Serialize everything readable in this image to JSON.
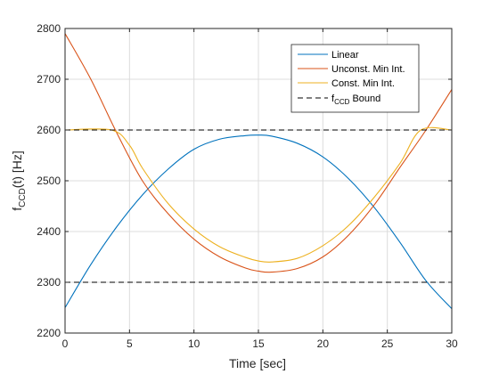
{
  "chart_data": {
    "type": "line",
    "title": "",
    "xlabel": "Time [sec]",
    "ylabel_main": "f",
    "ylabel_sub": "CCD",
    "ylabel_tail": "(t) [Hz]",
    "xlim": [
      0,
      30
    ],
    "ylim": [
      2200,
      2800
    ],
    "xticks": [
      "0",
      "5",
      "10",
      "15",
      "20",
      "25",
      "30"
    ],
    "yticks": [
      "2200",
      "2300",
      "2400",
      "2500",
      "2600",
      "2700",
      "2800"
    ],
    "grid": true,
    "legend_position": "top-right",
    "series": [
      {
        "name": "Linear",
        "color": "#0072BD",
        "style": "solid",
        "x": [
          0,
          2,
          4,
          6,
          8,
          10,
          12,
          14,
          15,
          16,
          18,
          20,
          22,
          24,
          26,
          28,
          30
        ],
        "y": [
          2250,
          2335,
          2409,
          2472,
          2523,
          2562,
          2582,
          2589,
          2590,
          2588,
          2574,
          2547,
          2504,
          2447,
          2378,
          2303,
          2248
        ]
      },
      {
        "name": "Unconst. Min Int.",
        "color": "#D95319",
        "style": "solid",
        "x": [
          0,
          2,
          4,
          6,
          8,
          10,
          12,
          14,
          15,
          16,
          18,
          20,
          22,
          24,
          26,
          28,
          30
        ],
        "y": [
          2790,
          2700,
          2595,
          2500,
          2435,
          2385,
          2350,
          2328,
          2322,
          2320,
          2327,
          2350,
          2393,
          2453,
          2527,
          2600,
          2680
        ]
      },
      {
        "name": "Const. Min Int.",
        "color": "#EDB120",
        "style": "solid",
        "x": [
          0,
          3.6,
          5,
          6,
          8,
          10,
          12,
          14,
          15,
          16,
          18,
          20,
          22,
          24,
          26,
          27.6,
          30
        ],
        "y": [
          2600,
          2600,
          2570,
          2525,
          2455,
          2405,
          2370,
          2349,
          2342,
          2340,
          2347,
          2372,
          2412,
          2468,
          2535,
          2600,
          2600
        ]
      },
      {
        "name_main": "f",
        "name_sub": "CCD",
        "name_tail": " Bound",
        "color": "#000000",
        "style": "dashed",
        "lines_y": [
          2600,
          2300
        ]
      }
    ]
  }
}
